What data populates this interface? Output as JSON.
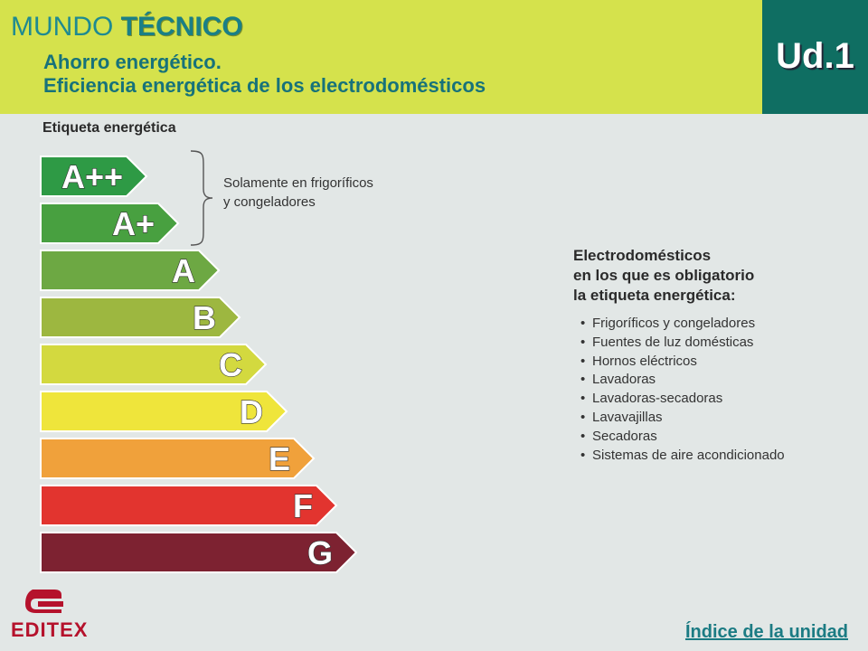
{
  "header": {
    "brand_part1": "MUNDO",
    "brand_part2": "TÉCNICO",
    "subtitle_line1": "Ahorro energético.",
    "subtitle_line2": "Eficiencia energética de los electrodomésticos",
    "unit": "Ud.1"
  },
  "energy_label": {
    "title": "Etiqueta energética",
    "classes": [
      {
        "label": "A++",
        "color": "#2e9a45"
      },
      {
        "label": "A+",
        "color": "#48a040"
      },
      {
        "label": "A",
        "color": "#6da843"
      },
      {
        "label": "B",
        "color": "#9db740"
      },
      {
        "label": "C",
        "color": "#d3d93f"
      },
      {
        "label": "D",
        "color": "#efe53b"
      },
      {
        "label": "E",
        "color": "#f0a13b"
      },
      {
        "label": "F",
        "color": "#e2342f"
      },
      {
        "label": "G",
        "color": "#7d2231"
      }
    ],
    "note_line1": "Solamente en frigoríficos",
    "note_line2": "y congeladores"
  },
  "appliances": {
    "title_line1": "Electrodomésticos",
    "title_line2": "en los que es obligatorio",
    "title_line3": "la etiqueta energética:",
    "items": [
      "Frigoríficos y congeladores",
      "Fuentes de luz domésticas",
      "Hornos eléctricos",
      "Lavadoras",
      "Lavadoras-secadoras",
      "Lavavajillas",
      "Secadoras",
      "Sistemas de aire acondicionado"
    ]
  },
  "footer": {
    "logo_text": "EDITEX",
    "index_link": "Índice de la unidad"
  }
}
